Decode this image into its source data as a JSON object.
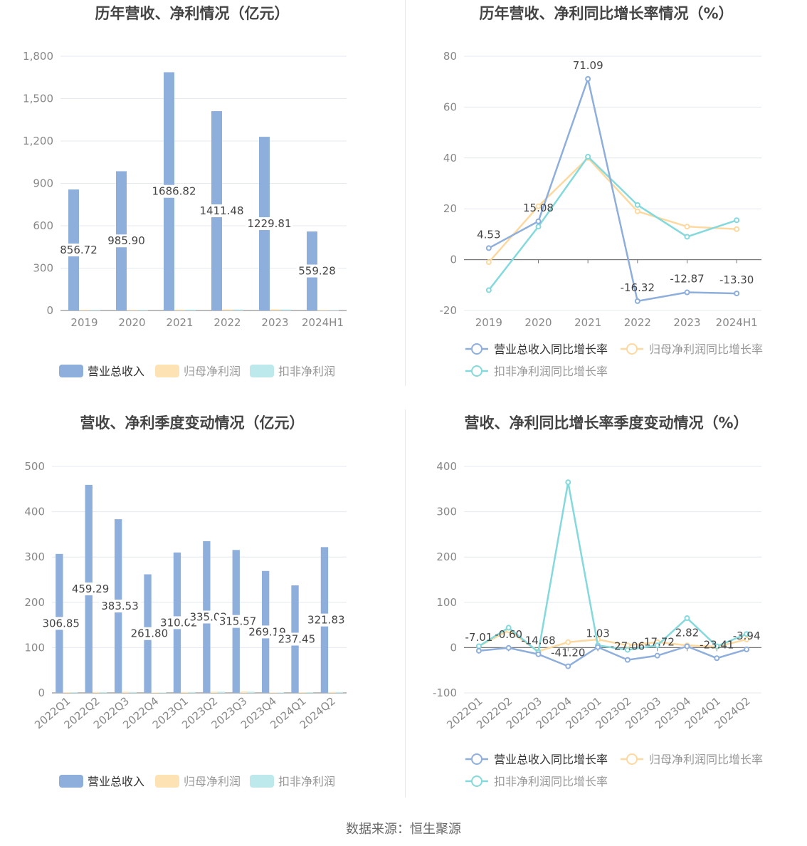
{
  "source_text": "数据来源：恒生聚源",
  "colors": {
    "revenue": "#8eaedc",
    "profit": "#fde3b3",
    "deducted": "#bde9ec",
    "rev_line": "#8eaedc",
    "profit_line": "#fdd9a0",
    "deducted_line": "#84d9dc"
  },
  "chart_data": [
    {
      "type": "bar",
      "title": "历年营收、净利情况（亿元）",
      "categories": [
        "2019",
        "2020",
        "2021",
        "2022",
        "2023",
        "2024H1"
      ],
      "ylim": [
        0,
        1800
      ],
      "yticks": [
        "0",
        "300",
        "600",
        "900",
        "1,200",
        "1,500",
        "1,800"
      ],
      "ytick_values": [
        0,
        300,
        600,
        900,
        1200,
        1500,
        1800
      ],
      "series": [
        {
          "name": "营业总收入",
          "values": [
            856.72,
            985.9,
            1686.82,
            1411.48,
            1229.81,
            559.28
          ],
          "labels": [
            "856.72",
            "985.90",
            "1686.82",
            "1411.48",
            "1229.81",
            "559.28"
          ]
        },
        {
          "name": "归母净利润",
          "values": [
            4,
            4,
            6,
            7,
            8,
            3
          ]
        },
        {
          "name": "扣非净利润",
          "values": [
            4,
            4,
            6,
            7,
            7,
            3
          ]
        }
      ],
      "legend": "bottom"
    },
    {
      "type": "line",
      "title": "历年营收、净利同比增长率情况（%）",
      "categories": [
        "2019",
        "2020",
        "2021",
        "2022",
        "2023",
        "2024H1"
      ],
      "ylim": [
        -20,
        80
      ],
      "yticks": [
        "-20",
        "0",
        "20",
        "40",
        "60",
        "80"
      ],
      "ytick_values": [
        -20,
        0,
        20,
        40,
        60,
        80
      ],
      "series": [
        {
          "name": "营业总收入同比增长率",
          "values": [
            4.53,
            15.08,
            71.09,
            -16.32,
            -12.87,
            -13.3
          ],
          "labels": [
            "4.53",
            "15.08",
            "71.09",
            "-16.32",
            "-12.87",
            "-13.30"
          ]
        },
        {
          "name": "归母净利润同比增长率",
          "values": [
            -1,
            21,
            40,
            19,
            13,
            12
          ]
        },
        {
          "name": "扣非净利润同比增长率",
          "values": [
            -12,
            13,
            40.5,
            21.5,
            9,
            15.5
          ]
        }
      ],
      "legend": "bottom"
    },
    {
      "type": "bar",
      "title": "营收、净利季度变动情况（亿元）",
      "categories": [
        "2022Q1",
        "2022Q2",
        "2022Q3",
        "2022Q4",
        "2023Q1",
        "2023Q2",
        "2023Q3",
        "2023Q4",
        "2024Q1",
        "2024Q2"
      ],
      "ylim": [
        0,
        500
      ],
      "yticks": [
        "0",
        "100",
        "200",
        "300",
        "400",
        "500"
      ],
      "ytick_values": [
        0,
        100,
        200,
        300,
        400,
        500
      ],
      "series": [
        {
          "name": "营业总收入",
          "values": [
            306.85,
            459.29,
            383.53,
            261.8,
            310.02,
            335.03,
            315.57,
            269.19,
            237.45,
            321.83
          ],
          "labels": [
            "306.85",
            "459.29",
            "383.53",
            "261.80",
            "310.02",
            "335.03",
            "315.57",
            "269.19",
            "237.45",
            "321.83"
          ]
        },
        {
          "name": "归母净利润",
          "values": [
            1.5,
            2,
            2.5,
            1,
            2,
            2.5,
            3,
            1,
            1.5,
            2
          ]
        },
        {
          "name": "扣非净利润",
          "values": [
            1.5,
            2,
            2,
            1,
            2,
            2.5,
            2.5,
            1,
            1.5,
            2
          ]
        }
      ],
      "legend": "bottom"
    },
    {
      "type": "line",
      "title": "营收、净利同比增长率季度变动情况（%）",
      "categories": [
        "2022Q1",
        "2022Q2",
        "2022Q3",
        "2022Q4",
        "2023Q1",
        "2023Q2",
        "2023Q3",
        "2023Q4",
        "2024Q1",
        "2024Q2"
      ],
      "ylim": [
        -100,
        400
      ],
      "yticks": [
        "-100",
        "0",
        "100",
        "200",
        "300",
        "400"
      ],
      "ytick_values": [
        -100,
        0,
        100,
        200,
        300,
        400
      ],
      "series": [
        {
          "name": "营业总收入同比增长率",
          "values": [
            -7.01,
            -0.6,
            -14.68,
            -41.2,
            1.03,
            -27.06,
            -17.72,
            2.82,
            -23.41,
            -3.94
          ],
          "labels": [
            "-7.01",
            "-0.60",
            "-14.68",
            "-41.20",
            "1.03",
            "-27.06",
            "-17.72",
            "2.82",
            "-23.41",
            "-3.94"
          ]
        },
        {
          "name": "归母净利润同比增长率",
          "values": [
            3,
            38,
            -8,
            12,
            18,
            5,
            12,
            5,
            2,
            18
          ]
        },
        {
          "name": "扣非净利润同比增长率",
          "values": [
            3,
            44,
            -10,
            365,
            5,
            -5,
            5,
            65,
            3,
            30
          ]
        }
      ],
      "legend": "bottom"
    }
  ]
}
